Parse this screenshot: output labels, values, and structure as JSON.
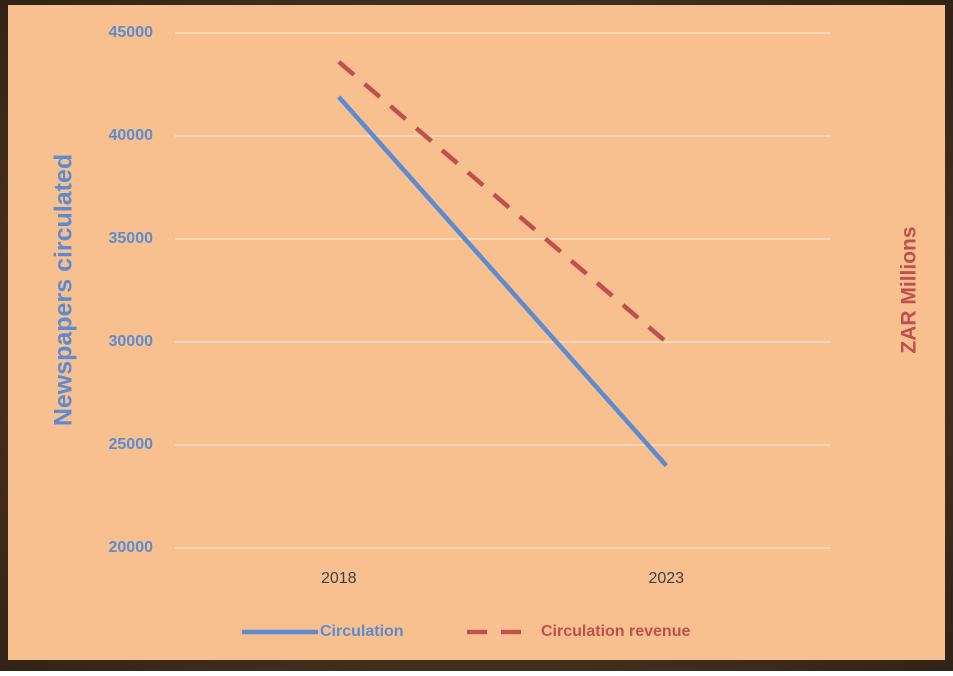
{
  "chart_data": {
    "type": "line",
    "y_label": "Newspapers circulated",
    "y2_label": "ZAR Millions",
    "categories": [
      "2018",
      "2023"
    ],
    "series": [
      {
        "name": "Circulation",
        "color": "#5b8bd0",
        "dash": false,
        "values": [
          41900,
          24000
        ]
      },
      {
        "name": "Circulation revenue",
        "color": "#c0504d",
        "dash": true,
        "values": [
          43600,
          30000
        ]
      }
    ],
    "ylim": [
      20000,
      45000
    ],
    "yticks": [
      20000,
      25000,
      30000,
      35000,
      40000,
      45000
    ],
    "grid": true,
    "legend": "bottom"
  }
}
